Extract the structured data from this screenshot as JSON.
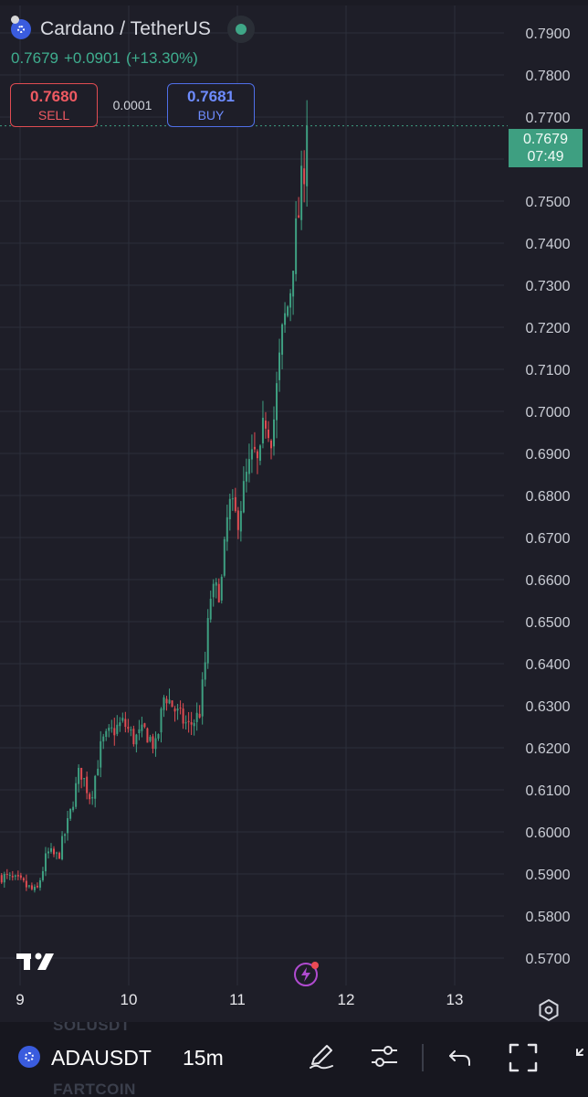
{
  "header": {
    "title": "Cardano / TetherUS",
    "last_price": "0.7679",
    "change": "+0.0901",
    "change_pct": "(+13.30%)"
  },
  "trade": {
    "sell_price": "0.7680",
    "sell_label": "SELL",
    "spread": "0.0001",
    "buy_price": "0.7681",
    "buy_label": "BUY"
  },
  "badge": {
    "price": "0.7679",
    "countdown": "07:49"
  },
  "colors": {
    "up": "#3e9f81",
    "down": "#e04c52",
    "background": "#1e1e28",
    "grid": "#2c2f3a"
  },
  "chart_data": {
    "type": "candlestick",
    "price_axis": [
      "0.7900",
      "0.7800",
      "0.7700",
      "0.7600",
      "0.7500",
      "0.7400",
      "0.7300",
      "0.7200",
      "0.7100",
      "0.7000",
      "0.6900",
      "0.6800",
      "0.6700",
      "0.6600",
      "0.6500",
      "0.6400",
      "0.6300",
      "0.6200",
      "0.6100",
      "0.6000",
      "0.5900",
      "0.5800",
      "0.5700"
    ],
    "ylim": [
      0.5668,
      0.7932
    ],
    "time_axis": [
      "9",
      "10",
      "11",
      "12",
      "13"
    ],
    "grid": true,
    "current_price": 0.7679,
    "approx_close_path": [
      {
        "t": 8.83,
        "p": 0.5895
      },
      {
        "t": 9.0,
        "p": 0.588
      },
      {
        "t": 9.15,
        "p": 0.5855
      },
      {
        "t": 9.25,
        "p": 0.595
      },
      {
        "t": 9.35,
        "p": 0.594
      },
      {
        "t": 9.45,
        "p": 0.603
      },
      {
        "t": 9.55,
        "p": 0.615
      },
      {
        "t": 9.65,
        "p": 0.608
      },
      {
        "t": 9.75,
        "p": 0.621
      },
      {
        "t": 9.85,
        "p": 0.624
      },
      {
        "t": 9.95,
        "p": 0.626
      },
      {
        "t": 10.05,
        "p": 0.622
      },
      {
        "t": 10.15,
        "p": 0.624
      },
      {
        "t": 10.25,
        "p": 0.62
      },
      {
        "t": 10.33,
        "p": 0.633
      },
      {
        "t": 10.45,
        "p": 0.628
      },
      {
        "t": 10.55,
        "p": 0.625
      },
      {
        "t": 10.65,
        "p": 0.628
      },
      {
        "t": 10.7,
        "p": 0.639
      },
      {
        "t": 10.75,
        "p": 0.656
      },
      {
        "t": 10.85,
        "p": 0.658
      },
      {
        "t": 10.92,
        "p": 0.678
      },
      {
        "t": 11.0,
        "p": 0.674
      },
      {
        "t": 11.08,
        "p": 0.684
      },
      {
        "t": 11.15,
        "p": 0.69
      },
      {
        "t": 11.2,
        "p": 0.686
      },
      {
        "t": 11.25,
        "p": 0.699
      },
      {
        "t": 11.32,
        "p": 0.694
      },
      {
        "t": 11.38,
        "p": 0.71
      },
      {
        "t": 11.42,
        "p": 0.72
      },
      {
        "t": 11.48,
        "p": 0.727
      },
      {
        "t": 11.52,
        "p": 0.739
      },
      {
        "t": 11.56,
        "p": 0.746
      },
      {
        "t": 11.6,
        "p": 0.756
      },
      {
        "t": 11.62,
        "p": 0.76
      },
      {
        "t": 11.64,
        "p": 0.7679
      }
    ]
  },
  "bottom_bar": {
    "symbol": "ADAUSDT",
    "interval": "15m",
    "ghost_above": "SOLUSDT",
    "ghost_below": "FARTCOIN",
    "icons": [
      "coin-icon",
      "pen-icon",
      "sliders-icon",
      "undo-icon",
      "fullscreen-icon",
      "expand-icon"
    ]
  }
}
